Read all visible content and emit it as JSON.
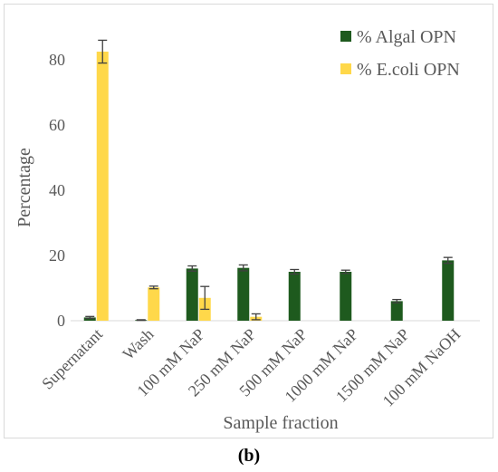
{
  "chart_data": {
    "type": "bar",
    "title": "",
    "xlabel": "Sample fraction",
    "ylabel": "Percentage",
    "ylim": [
      0,
      90
    ],
    "yticks": [
      0,
      20,
      40,
      60,
      80
    ],
    "grid": false,
    "legend_position": "top-right",
    "categories": [
      "Supernatant",
      "Wash",
      "100 mM NaP",
      "250 mM NaP",
      "500 mM NaP",
      "1000 mM NaP",
      "1500 mM NaP",
      "100 mM NaOH"
    ],
    "series": [
      {
        "name": "% Algal OPN",
        "color": "#1e5a1e",
        "values": [
          1.0,
          0.2,
          16.0,
          16.2,
          15.0,
          15.0,
          6.0,
          18.5
        ],
        "errors": [
          0.3,
          0.1,
          0.8,
          0.9,
          0.7,
          0.5,
          0.5,
          0.9
        ]
      },
      {
        "name": "% E.coli OPN",
        "color": "#ffd84a",
        "values": [
          82.5,
          10.2,
          7.0,
          1.2,
          0,
          0,
          0,
          0
        ],
        "errors": [
          3.5,
          0.4,
          3.5,
          0.9,
          0,
          0,
          0,
          0
        ]
      }
    ]
  },
  "panel_label": "(b)"
}
